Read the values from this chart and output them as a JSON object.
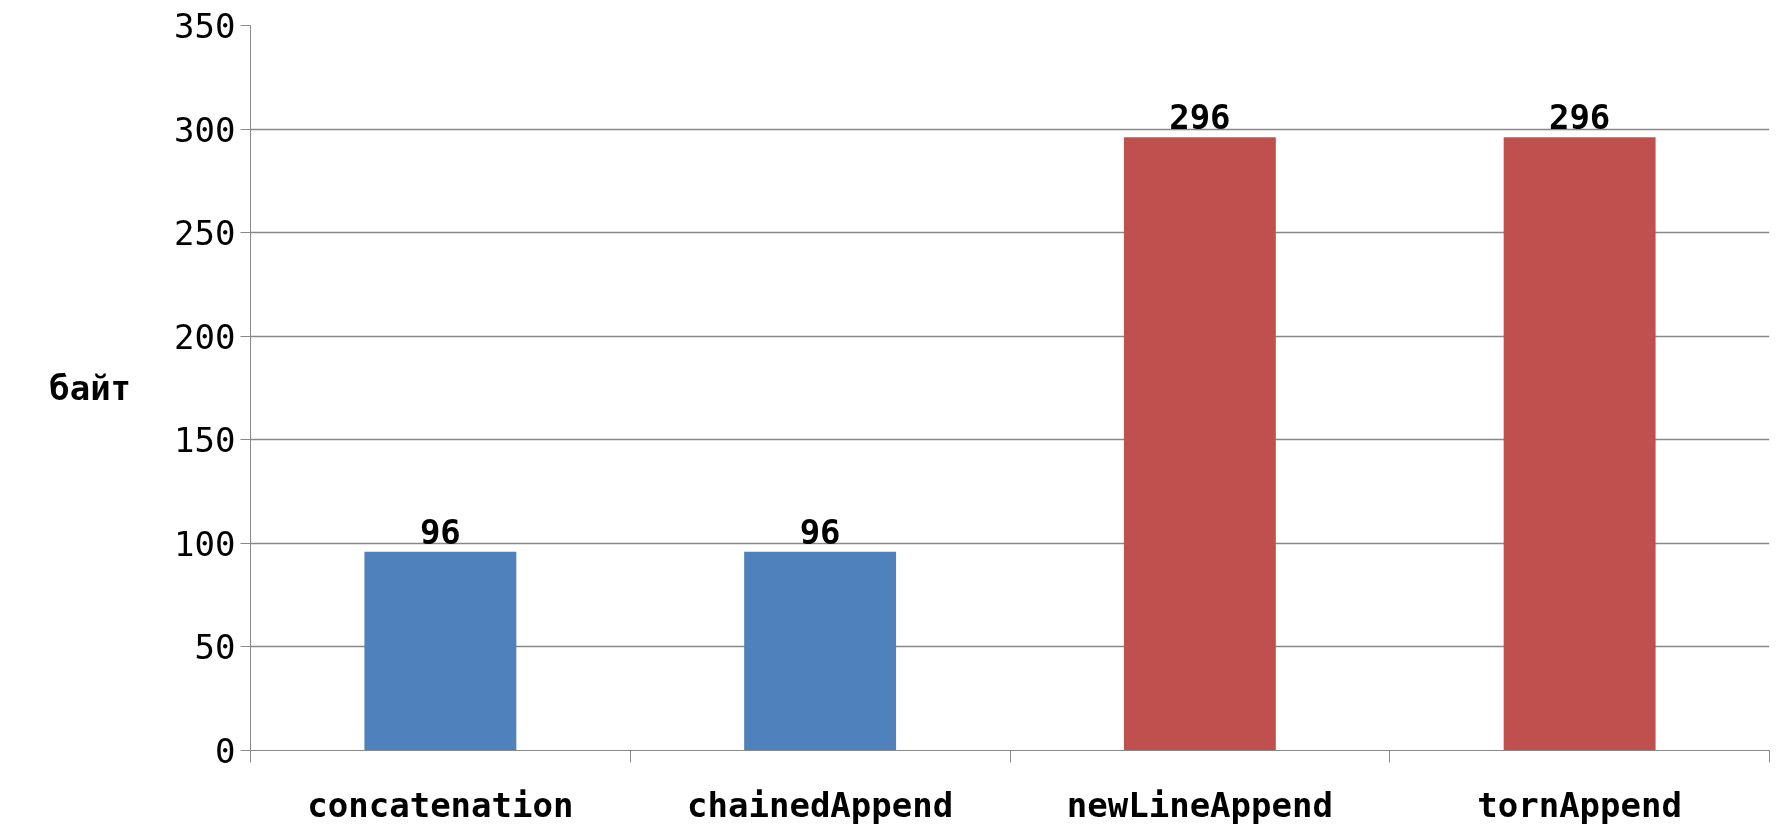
{
  "chart_data": {
    "type": "bar",
    "ylabel": "байт",
    "categories": [
      "concatenation",
      "chainedAppend",
      "newLineAppend",
      "tornAppend"
    ],
    "values": [
      96,
      96,
      296,
      296
    ],
    "colors": [
      "#4f81bd",
      "#4f81bd",
      "#c0504d",
      "#c0504d"
    ],
    "ylim": [
      0,
      350
    ],
    "yticks": [
      0,
      50,
      100,
      150,
      200,
      250,
      300,
      350
    ],
    "grid": "y",
    "data_labels": true
  }
}
